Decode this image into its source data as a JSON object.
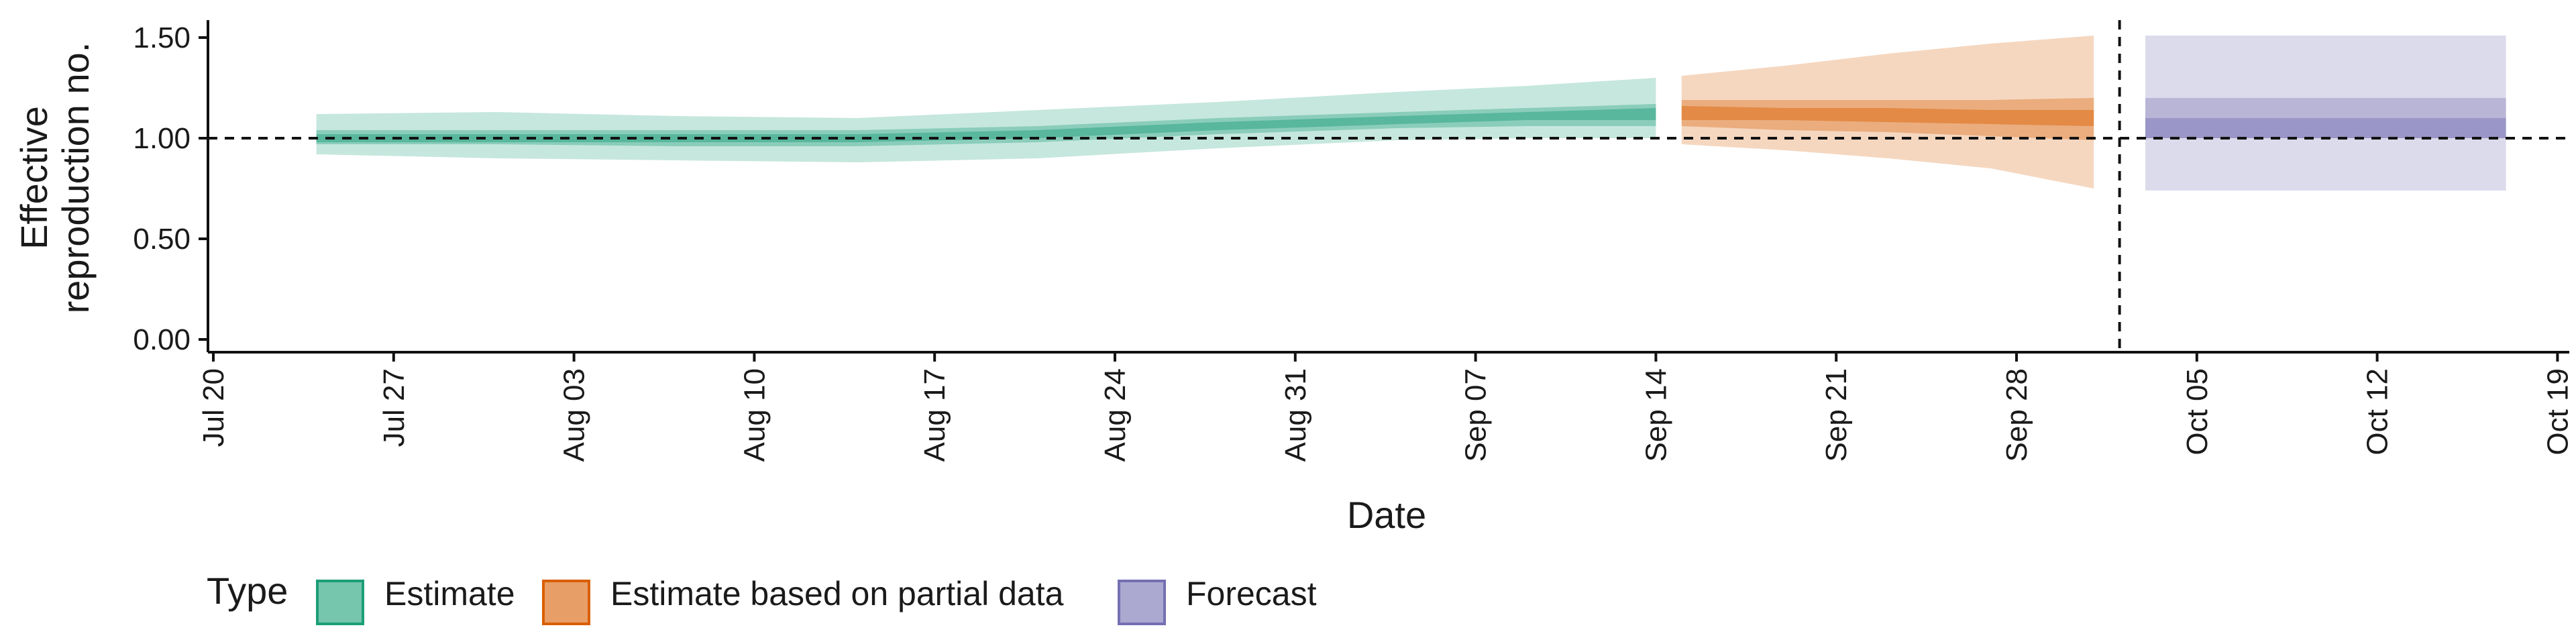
{
  "chart_data": {
    "type": "area",
    "xlabel": "Date",
    "ylabel_lines": [
      "Effective",
      "reproduction no."
    ],
    "ylim": [
      0,
      1.6
    ],
    "y_ticks": [
      0.0,
      0.5,
      1.0,
      1.5
    ],
    "y_tick_labels": [
      "0.00",
      "0.50",
      "1.00",
      "1.50"
    ],
    "x_ticks": [
      "2020-07-20",
      "2020-07-27",
      "2020-08-03",
      "2020-08-10",
      "2020-08-17",
      "2020-08-24",
      "2020-08-31",
      "2020-09-07",
      "2020-09-14",
      "2020-09-21",
      "2020-09-28",
      "2020-10-05",
      "2020-10-12",
      "2020-10-19"
    ],
    "x_tick_labels": [
      "Jul 20",
      "Jul 27",
      "Aug 03",
      "Aug 10",
      "Aug 17",
      "Aug 24",
      "Aug 31",
      "Sep 07",
      "Sep 14",
      "Sep 21",
      "Sep 28",
      "Oct 05",
      "Oct 12",
      "Oct 19"
    ],
    "reference_lines": {
      "horizontal_y": 1.0,
      "vertical_date": "2020-10-02"
    },
    "grid": false,
    "legend": {
      "title": "Type",
      "position": "bottom",
      "items": [
        {
          "label": "Estimate",
          "color": "#1b9e77"
        },
        {
          "label": "Estimate based on partial data",
          "color": "#d95f02"
        },
        {
          "label": "Forecast",
          "color": "#7570b3"
        }
      ]
    },
    "series": [
      {
        "name": "Estimate",
        "color": "#1b9e77",
        "points": [
          {
            "date": "2020-07-24",
            "median": 1.0,
            "lo20": 0.98,
            "hi20": 1.02,
            "lo50": 0.97,
            "hi50": 1.04,
            "lo90": 0.92,
            "hi90": 1.12
          },
          {
            "date": "2020-07-31",
            "median": 1.0,
            "lo20": 0.98,
            "hi20": 1.02,
            "lo50": 0.97,
            "hi50": 1.04,
            "lo90": 0.9,
            "hi90": 1.13
          },
          {
            "date": "2020-08-07",
            "median": 1.0,
            "lo20": 0.98,
            "hi20": 1.02,
            "lo50": 0.96,
            "hi50": 1.04,
            "lo90": 0.89,
            "hi90": 1.11
          },
          {
            "date": "2020-08-14",
            "median": 1.0,
            "lo20": 0.98,
            "hi20": 1.02,
            "lo50": 0.96,
            "hi50": 1.04,
            "lo90": 0.88,
            "hi90": 1.1
          },
          {
            "date": "2020-08-21",
            "median": 1.02,
            "lo20": 1.0,
            "hi20": 1.04,
            "lo50": 0.98,
            "hi50": 1.06,
            "lo90": 0.9,
            "hi90": 1.14
          },
          {
            "date": "2020-08-28",
            "median": 1.06,
            "lo20": 1.04,
            "hi20": 1.08,
            "lo50": 1.02,
            "hi50": 1.1,
            "lo90": 0.95,
            "hi90": 1.18
          },
          {
            "date": "2020-09-04",
            "median": 1.09,
            "lo20": 1.07,
            "hi20": 1.11,
            "lo50": 1.05,
            "hi50": 1.13,
            "lo90": 0.99,
            "hi90": 1.23
          },
          {
            "date": "2020-09-09",
            "median": 1.11,
            "lo20": 1.09,
            "hi20": 1.13,
            "lo50": 1.06,
            "hi50": 1.15,
            "lo90": 1.0,
            "hi90": 1.26
          },
          {
            "date": "2020-09-14",
            "median": 1.12,
            "lo20": 1.09,
            "hi20": 1.15,
            "lo50": 1.06,
            "hi50": 1.17,
            "lo90": 1.0,
            "hi90": 1.3
          }
        ]
      },
      {
        "name": "Estimate based on partial data",
        "color": "#d95f02",
        "points": [
          {
            "date": "2020-09-15",
            "median": 1.12,
            "lo20": 1.09,
            "hi20": 1.16,
            "lo50": 1.06,
            "hi50": 1.19,
            "lo90": 0.97,
            "hi90": 1.31
          },
          {
            "date": "2020-09-19",
            "median": 1.12,
            "lo20": 1.09,
            "hi20": 1.15,
            "lo50": 1.04,
            "hi50": 1.19,
            "lo90": 0.94,
            "hi90": 1.36
          },
          {
            "date": "2020-09-23",
            "median": 1.11,
            "lo20": 1.08,
            "hi20": 1.15,
            "lo50": 1.03,
            "hi50": 1.19,
            "lo90": 0.9,
            "hi90": 1.42
          },
          {
            "date": "2020-09-27",
            "median": 1.1,
            "lo20": 1.07,
            "hi20": 1.14,
            "lo50": 1.01,
            "hi50": 1.19,
            "lo90": 0.85,
            "hi90": 1.47
          },
          {
            "date": "2020-10-01",
            "median": 1.1,
            "lo20": 1.06,
            "hi20": 1.14,
            "lo50": 0.99,
            "hi50": 1.2,
            "lo90": 0.75,
            "hi90": 1.51
          }
        ]
      },
      {
        "name": "Forecast",
        "color": "#7570b3",
        "points": [
          {
            "date": "2020-10-03",
            "median": 1.1,
            "lo20": 1.0,
            "hi20": 1.1,
            "lo50": 1.0,
            "hi50": 1.2,
            "lo90": 0.74,
            "hi90": 1.51
          },
          {
            "date": "2020-10-17",
            "median": 1.1,
            "lo20": 1.0,
            "hi20": 1.1,
            "lo50": 1.0,
            "hi50": 1.2,
            "lo90": 0.74,
            "hi90": 1.51
          }
        ]
      }
    ]
  }
}
